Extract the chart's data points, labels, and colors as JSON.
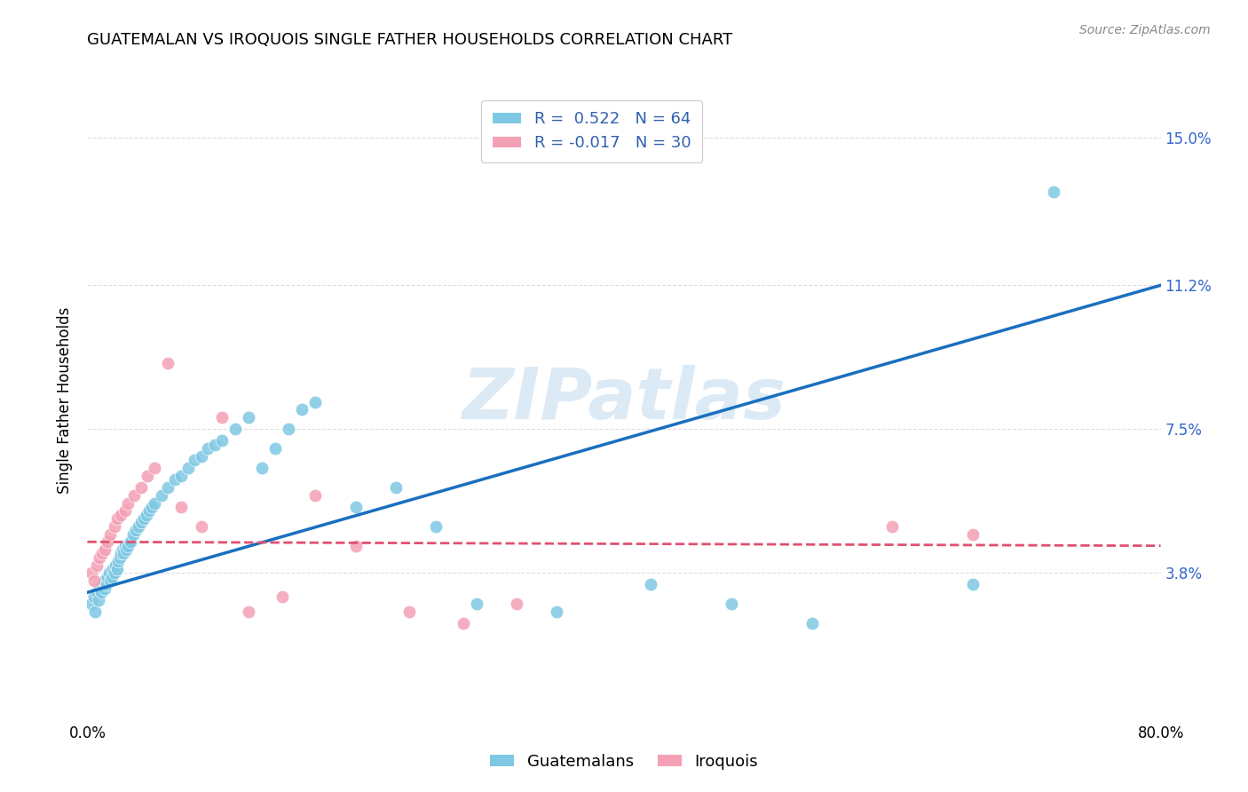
{
  "title": "GUATEMALAN VS IROQUOIS SINGLE FATHER HOUSEHOLDS CORRELATION CHART",
  "source": "Source: ZipAtlas.com",
  "ylabel": "Single Father Households",
  "watermark": "ZIPatlas",
  "xlim": [
    0.0,
    0.8
  ],
  "ylim": [
    0.0,
    0.165
  ],
  "ytick_positions": [
    0.038,
    0.075,
    0.112,
    0.15
  ],
  "ytick_labels": [
    "3.8%",
    "7.5%",
    "11.2%",
    "15.0%"
  ],
  "r_guatemalan": 0.522,
  "n_guatemalan": 64,
  "r_iroquois": -0.017,
  "n_iroquois": 30,
  "color_guatemalan": "#7EC8E3",
  "color_iroquois": "#F4A0B5",
  "line_color_guatemalan": "#1A6FBF",
  "line_color_iroquois": "#E05070",
  "legend_guatemalan": "Guatemalans",
  "legend_iroquois": "Iroquois",
  "guat_line_x0": 0.0,
  "guat_line_y0": 0.033,
  "guat_line_x1": 0.8,
  "guat_line_y1": 0.112,
  "iroq_line_x0": 0.0,
  "iroq_line_y0": 0.046,
  "iroq_line_x1": 0.8,
  "iroq_line_y1": 0.045,
  "guatemalan_x": [
    0.003,
    0.005,
    0.006,
    0.007,
    0.008,
    0.009,
    0.01,
    0.011,
    0.012,
    0.013,
    0.014,
    0.015,
    0.016,
    0.017,
    0.018,
    0.019,
    0.02,
    0.021,
    0.022,
    0.023,
    0.024,
    0.025,
    0.026,
    0.027,
    0.028,
    0.029,
    0.03,
    0.032,
    0.034,
    0.036,
    0.038,
    0.04,
    0.042,
    0.044,
    0.046,
    0.048,
    0.05,
    0.055,
    0.06,
    0.065,
    0.07,
    0.075,
    0.08,
    0.085,
    0.09,
    0.095,
    0.1,
    0.11,
    0.12,
    0.13,
    0.14,
    0.15,
    0.16,
    0.17,
    0.2,
    0.23,
    0.26,
    0.29,
    0.35,
    0.42,
    0.48,
    0.54,
    0.66,
    0.72
  ],
  "guatemalan_y": [
    0.03,
    0.032,
    0.028,
    0.033,
    0.031,
    0.034,
    0.033,
    0.035,
    0.036,
    0.034,
    0.035,
    0.037,
    0.038,
    0.036,
    0.037,
    0.039,
    0.038,
    0.04,
    0.039,
    0.041,
    0.042,
    0.043,
    0.044,
    0.043,
    0.045,
    0.044,
    0.045,
    0.046,
    0.048,
    0.049,
    0.05,
    0.051,
    0.052,
    0.053,
    0.054,
    0.055,
    0.056,
    0.058,
    0.06,
    0.062,
    0.063,
    0.065,
    0.067,
    0.068,
    0.07,
    0.071,
    0.072,
    0.075,
    0.078,
    0.065,
    0.07,
    0.075,
    0.08,
    0.082,
    0.055,
    0.06,
    0.05,
    0.03,
    0.028,
    0.035,
    0.03,
    0.025,
    0.035,
    0.136
  ],
  "iroquois_x": [
    0.003,
    0.005,
    0.007,
    0.009,
    0.011,
    0.013,
    0.015,
    0.017,
    0.02,
    0.022,
    0.025,
    0.028,
    0.03,
    0.035,
    0.04,
    0.045,
    0.05,
    0.06,
    0.07,
    0.085,
    0.1,
    0.12,
    0.145,
    0.17,
    0.2,
    0.24,
    0.28,
    0.32,
    0.6,
    0.66
  ],
  "iroquois_y": [
    0.038,
    0.036,
    0.04,
    0.042,
    0.043,
    0.044,
    0.046,
    0.048,
    0.05,
    0.052,
    0.053,
    0.054,
    0.056,
    0.058,
    0.06,
    0.063,
    0.065,
    0.092,
    0.055,
    0.05,
    0.078,
    0.028,
    0.032,
    0.058,
    0.045,
    0.028,
    0.025,
    0.03,
    0.05,
    0.048
  ],
  "background_color": "#FFFFFF",
  "grid_color": "#DDDDDD"
}
